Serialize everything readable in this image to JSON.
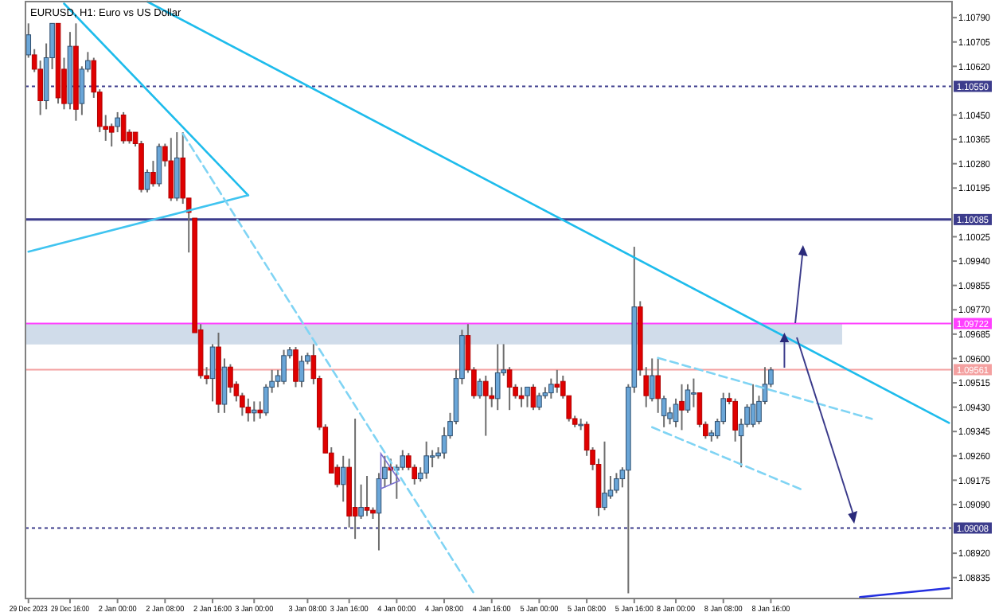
{
  "chart_data": {
    "type": "candlestick",
    "title": "EURUSD, H1: Euro vs US Dollar",
    "categories": [
      "29 Dec 2023",
      null,
      null,
      null,
      null,
      null,
      null,
      "29 Dec 16:00",
      null,
      null,
      null,
      null,
      null,
      null,
      null,
      "2 Jan 00:00",
      null,
      null,
      null,
      null,
      null,
      null,
      null,
      "2 Jan 08:00",
      null,
      null,
      null,
      null,
      null,
      null,
      null,
      "2 Jan 16:00",
      null,
      null,
      null,
      null,
      null,
      null,
      "3 Jan 00:00",
      null,
      null,
      null,
      null,
      null,
      null,
      null,
      null,
      "3 Jan 08:00",
      null,
      null,
      null,
      null,
      null,
      null,
      "3 Jan 16:00",
      null,
      null,
      null,
      null,
      null,
      null,
      null,
      "4 Jan 00:00",
      null,
      null,
      null,
      null,
      null,
      null,
      null,
      "4 Jan 08:00",
      null,
      null,
      null,
      null,
      null,
      null,
      null,
      "4 Jan 16:00",
      null,
      null,
      null,
      null,
      null,
      null,
      null,
      "5 Jan 00:00",
      null,
      null,
      null,
      null,
      null,
      null,
      null,
      "5 Jan 08:00",
      null,
      null,
      null,
      null,
      null,
      null,
      null,
      "5 Jan 16:00",
      null,
      null,
      null,
      null,
      null,
      null,
      "8 Jan 00:00",
      null,
      null,
      null,
      null,
      null,
      null,
      null,
      "8 Jan 08:00",
      null,
      null,
      null,
      null,
      null,
      null,
      null,
      "8 Jan 16:00",
      null,
      null,
      null,
      null,
      null,
      null,
      null,
      null,
      null,
      null,
      null,
      null,
      null,
      null,
      null,
      null,
      null,
      null,
      null,
      null,
      null,
      null,
      null,
      null,
      null,
      null,
      null,
      null,
      null,
      null
    ],
    "ohlc": [
      [
        1.1066,
        1.1077,
        1.1065,
        1.1073
      ],
      [
        1.1066,
        1.1068,
        1.106,
        1.1061
      ],
      [
        1.1061,
        1.1064,
        1.1045,
        1.105
      ],
      [
        1.105,
        1.107,
        1.1047,
        1.1065
      ],
      [
        1.1065,
        1.1077,
        1.1061,
        1.1077
      ],
      [
        1.1077,
        1.1077,
        1.1049,
        1.1051
      ],
      [
        1.1061,
        1.1065,
        1.1047,
        1.1049
      ],
      [
        1.1049,
        1.1074,
        1.1047,
        1.1069
      ],
      [
        1.1069,
        1.1077,
        1.1043,
        1.1047
      ],
      [
        1.1049,
        1.1062,
        1.1045,
        1.1061
      ],
      [
        1.1061,
        1.1067,
        1.106,
        1.1064
      ],
      [
        1.1064,
        1.1065,
        1.1051,
        1.1053
      ],
      [
        1.1053,
        1.1054,
        1.1039,
        1.1041
      ],
      [
        1.1041,
        1.1045,
        1.1036,
        1.104
      ],
      [
        1.1041,
        1.1042,
        1.1034,
        1.1039
      ],
      [
        1.1041,
        1.1046,
        1.1039,
        1.1044
      ],
      [
        1.1045,
        1.1046,
        1.1035,
        1.1036
      ],
      [
        1.1039,
        1.104,
        1.1035,
        1.1036
      ],
      [
        1.1039,
        1.1039,
        1.1034,
        1.1035
      ],
      [
        1.1035,
        1.1036,
        1.1018,
        1.1019
      ],
      [
        1.1019,
        1.1026,
        1.1018,
        1.1025
      ],
      [
        1.1025,
        1.1029,
        1.102,
        1.1021
      ],
      [
        1.1021,
        1.1035,
        1.102,
        1.1034
      ],
      [
        1.1034,
        1.1035,
        1.1027,
        1.1029
      ],
      [
        1.1029,
        1.1037,
        1.1015,
        1.1016
      ],
      [
        1.1016,
        1.1039,
        1.1015,
        1.103
      ],
      [
        1.103,
        1.1039,
        1.1014,
        1.1016
      ],
      [
        1.1016,
        1.1016,
        1.0997,
        1.1011
      ],
      [
        1.1009,
        1.1009,
        1.0969,
        1.0969
      ],
      [
        1.097,
        1.0972,
        1.0953,
        1.0954
      ],
      [
        1.0954,
        1.0957,
        1.0951,
        1.0953
      ],
      [
        1.0953,
        1.0965,
        1.0945,
        1.0964
      ],
      [
        1.0964,
        1.0969,
        1.0941,
        1.0944
      ],
      [
        1.0944,
        1.096,
        1.0941,
        1.0957
      ],
      [
        1.0957,
        1.0958,
        1.0948,
        1.095
      ],
      [
        1.0951,
        1.0952,
        1.0945,
        1.0947
      ],
      [
        1.0947,
        1.0948,
        1.094,
        1.0943
      ],
      [
        1.0943,
        1.0946,
        1.0938,
        1.0941
      ],
      [
        1.0941,
        1.0945,
        1.0938,
        1.0942
      ],
      [
        1.0942,
        1.0945,
        1.0939,
        1.0941
      ],
      [
        1.0941,
        1.0951,
        1.094,
        1.095
      ],
      [
        1.095,
        1.0956,
        1.0948,
        1.0952
      ],
      [
        1.0952,
        1.0956,
        1.095,
        1.0954
      ],
      [
        1.0952,
        1.0963,
        1.0951,
        1.0961
      ],
      [
        1.0961,
        1.0964,
        1.096,
        1.0963
      ],
      [
        1.0963,
        1.0964,
        1.095,
        1.0952
      ],
      [
        1.0952,
        1.0961,
        1.095,
        1.0959
      ],
      [
        1.0959,
        1.0962,
        1.0958,
        1.0961
      ],
      [
        1.0961,
        1.0965,
        1.0951,
        1.0953
      ],
      [
        1.0953,
        1.0954,
        1.0935,
        1.0936
      ],
      [
        1.0936,
        1.0937,
        1.0927,
        1.0927
      ],
      [
        1.0927,
        1.0929,
        1.092,
        1.092
      ],
      [
        1.0922,
        1.0923,
        1.0915,
        1.0916
      ],
      [
        1.0916,
        1.0926,
        1.091,
        1.0922
      ],
      [
        1.0922,
        1.0925,
        1.0901,
        1.0905
      ],
      [
        1.0908,
        1.0939,
        1.0897,
        1.0905
      ],
      [
        1.0905,
        1.0916,
        1.0904,
        1.0908
      ],
      [
        1.0908,
        1.0919,
        1.0905,
        1.0907
      ],
      [
        1.0907,
        1.0908,
        1.0904,
        1.0906
      ],
      [
        1.0906,
        1.092,
        1.0893,
        1.0918
      ],
      [
        1.0918,
        1.0926,
        1.0915,
        1.0922
      ],
      [
        1.0922,
        1.0925,
        1.0916,
        1.0921
      ],
      [
        1.0921,
        1.0923,
        1.0911,
        1.0922
      ],
      [
        1.0922,
        1.0928,
        1.0921,
        1.0926
      ],
      [
        1.0926,
        1.0927,
        1.0921,
        1.0922
      ],
      [
        1.0922,
        1.0923,
        1.0916,
        1.0918
      ],
      [
        1.0918,
        1.0922,
        1.0917,
        1.092
      ],
      [
        1.092,
        1.0931,
        1.0918,
        1.0926
      ],
      [
        1.0926,
        1.0928,
        1.0922,
        1.0926
      ],
      [
        1.0926,
        1.0929,
        1.0925,
        1.0927
      ],
      [
        1.0927,
        1.0936,
        1.0925,
        1.0933
      ],
      [
        1.0933,
        1.0941,
        1.0932,
        1.0938
      ],
      [
        1.0938,
        1.0956,
        1.0937,
        1.0953
      ],
      [
        1.0953,
        1.097,
        1.0951,
        1.0968
      ],
      [
        1.0968,
        1.0972,
        1.0955,
        1.0956
      ],
      [
        1.0956,
        1.0957,
        1.0946,
        1.0947
      ],
      [
        1.0947,
        1.0953,
        1.0946,
        1.0952
      ],
      [
        1.0952,
        1.0954,
        1.0933,
        1.0947
      ],
      [
        1.0947,
        1.095,
        1.0943,
        1.0946
      ],
      [
        1.0946,
        1.0965,
        1.0942,
        1.0955
      ],
      [
        1.0955,
        1.0965,
        1.0954,
        1.0956
      ],
      [
        1.0956,
        1.0957,
        1.0942,
        1.095
      ],
      [
        1.095,
        1.0951,
        1.0946,
        1.0947
      ],
      [
        1.0947,
        1.095,
        1.0943,
        1.0946
      ],
      [
        1.0947,
        1.095,
        1.0943,
        1.095
      ],
      [
        1.095,
        1.0951,
        1.0942,
        1.0943
      ],
      [
        1.0943,
        1.0948,
        1.0942,
        1.0947
      ],
      [
        1.0947,
        1.095,
        1.0946,
        1.0948
      ],
      [
        1.0948,
        1.0953,
        1.0946,
        1.0951
      ],
      [
        1.0951,
        1.0956,
        1.0948,
        1.095
      ],
      [
        1.0952,
        1.0954,
        1.0946,
        1.0947
      ],
      [
        1.0947,
        1.0947,
        1.0938,
        1.0939
      ],
      [
        1.0939,
        1.094,
        1.0936,
        1.0937
      ],
      [
        1.0937,
        1.0939,
        1.0935,
        1.0937
      ],
      [
        1.0937,
        1.0938,
        1.0926,
        1.0928
      ],
      [
        1.0928,
        1.0929,
        1.0921,
        1.0923
      ],
      [
        1.0923,
        1.0925,
        1.0905,
        1.0908
      ],
      [
        1.0908,
        1.0931,
        1.0907,
        1.0913
      ],
      [
        1.0912,
        1.0919,
        1.0911,
        1.0914
      ],
      [
        1.0914,
        1.092,
        1.0913,
        1.0918
      ],
      [
        1.0918,
        1.0922,
        1.0915,
        1.0921
      ],
      [
        1.0921,
        1.0951,
        1.0878,
        1.095
      ],
      [
        1.095,
        1.0999,
        1.0948,
        1.0978
      ],
      [
        1.0978,
        1.098,
        1.0954,
        1.0956
      ],
      [
        1.0954,
        1.0957,
        1.0943,
        1.0947
      ],
      [
        1.0946,
        1.096,
        1.0945,
        1.0954
      ],
      [
        1.0954,
        1.096,
        1.0941,
        1.0946
      ],
      [
        1.094,
        1.0947,
        1.0936,
        1.0946
      ],
      [
        1.0939,
        1.0943,
        1.0937,
        1.0941
      ],
      [
        1.0938,
        1.0946,
        1.0936,
        1.0944
      ],
      [
        1.0945,
        1.0951,
        1.0935,
        1.0942
      ],
      [
        1.0942,
        1.0951,
        1.0941,
        1.0949
      ],
      [
        1.0948,
        1.0953,
        1.0943,
        1.0948
      ],
      [
        1.0948,
        1.0948,
        1.0936,
        1.0937
      ],
      [
        1.0937,
        1.0938,
        1.0932,
        1.0933
      ],
      [
        1.0933,
        1.0935,
        1.0931,
        1.0934
      ],
      [
        1.0933,
        1.0939,
        1.0932,
        1.0938
      ],
      [
        1.0938,
        1.0948,
        1.0937,
        1.0946
      ],
      [
        1.0946,
        1.0948,
        1.0944,
        1.0945
      ],
      [
        1.0945,
        1.0946,
        1.0931,
        1.0935
      ],
      [
        1.0933,
        1.0939,
        1.0922,
        1.0937
      ],
      [
        1.0937,
        1.0944,
        1.0936,
        1.0943
      ],
      [
        1.0937,
        1.0951,
        1.0936,
        1.0944
      ],
      [
        1.0938,
        1.0947,
        1.0937,
        1.0945
      ],
      [
        1.0945,
        1.0957,
        1.0944,
        1.0951
      ],
      [
        1.0951,
        1.0957,
        1.095,
        1.0956
      ],
      null,
      null,
      null,
      null,
      null,
      null,
      null,
      null,
      null,
      null,
      null,
      null,
      null,
      null,
      null,
      null,
      null,
      null,
      null,
      null,
      null,
      null,
      null,
      null,
      null,
      null,
      null,
      null,
      null,
      null
    ],
    "series": [
      {
        "type": "line",
        "color": "#1ebcec",
        "line_style": "solid",
        "values": [
          null,
          null,
          null,
          null,
          null,
          null,
          null,
          null,
          null,
          null,
          null,
          null,
          null,
          null,
          null,
          null,
          null,
          null,
          null,
          null,
          1.10846,
          null,
          null,
          null,
          null,
          null,
          null,
          null,
          null,
          null,
          null,
          null,
          null,
          null,
          null,
          null,
          null,
          null,
          null,
          null,
          null,
          null,
          null,
          null,
          null,
          null,
          null,
          null,
          null,
          null,
          null,
          null,
          null,
          null,
          null,
          null,
          null,
          null,
          null,
          null,
          null,
          null,
          null,
          null,
          null,
          null,
          null,
          null,
          null,
          null,
          null,
          null,
          null,
          null,
          null,
          null,
          null,
          null,
          null,
          null,
          null,
          null,
          null,
          null,
          null,
          null,
          null,
          null,
          null,
          null,
          null,
          null,
          null,
          null,
          null,
          null,
          null,
          null,
          null,
          null,
          null,
          null,
          null,
          null,
          null,
          null,
          null,
          null,
          null,
          null,
          null,
          null,
          null,
          null,
          null,
          null,
          null,
          null,
          null,
          null,
          null,
          null,
          null,
          null,
          null,
          null,
          null,
          null,
          null,
          null,
          null,
          null,
          null,
          null,
          null,
          null,
          null,
          null,
          null,
          null,
          null,
          null,
          null,
          null,
          null,
          null,
          null,
          null,
          null,
          null,
          null,
          null,
          null,
          null,
          null,
          1.09375
        ]
      },
      {
        "type": "line",
        "color": "#1ebcec",
        "line_style": "solid",
        "values": [
          null,
          null,
          null,
          null,
          null,
          null,
          1.10839,
          null,
          null,
          null,
          null,
          null,
          null,
          null,
          null,
          null,
          null,
          null,
          null,
          null,
          null,
          null,
          null,
          null,
          null,
          null,
          null,
          null,
          null,
          null,
          null,
          null,
          null,
          null,
          null,
          null,
          null,
          1.1017,
          null,
          null,
          null,
          null,
          null,
          null,
          null,
          null,
          null,
          null,
          null,
          null,
          null,
          null,
          null,
          null,
          null,
          null,
          null,
          null,
          null,
          null,
          null,
          null,
          null,
          null,
          null,
          null,
          null,
          null,
          null,
          null,
          null,
          null,
          null,
          null,
          null,
          null,
          null,
          null,
          null,
          null,
          null,
          null,
          null,
          null,
          null,
          null,
          null,
          null,
          null,
          null,
          null,
          null,
          null,
          null,
          null,
          null,
          null,
          null,
          null,
          null,
          null,
          null,
          null,
          null,
          null,
          null,
          null,
          null,
          null,
          null,
          null,
          null,
          null,
          null,
          null,
          null,
          null,
          null,
          null,
          null,
          null,
          null,
          null,
          null,
          null,
          null,
          null,
          null,
          null,
          null,
          null,
          null,
          null,
          null,
          null,
          null,
          null,
          null,
          null,
          null,
          null,
          null,
          null,
          null,
          null,
          null,
          null,
          null,
          null,
          null,
          null,
          null,
          null,
          null,
          null,
          null
        ]
      },
      {
        "type": "line",
        "color": "#40c4f0",
        "line_style": "solid",
        "values": [
          1.09973,
          null,
          null,
          null,
          null,
          null,
          null,
          null,
          null,
          null,
          null,
          null,
          null,
          null,
          null,
          null,
          null,
          null,
          null,
          null,
          null,
          null,
          null,
          null,
          null,
          null,
          null,
          null,
          null,
          null,
          null,
          null,
          null,
          null,
          null,
          null,
          null,
          1.1017,
          null,
          null,
          null,
          null,
          null,
          null,
          null,
          null,
          null,
          null,
          null,
          null,
          null,
          null,
          null,
          null,
          null,
          null,
          null,
          null,
          null,
          null,
          null,
          null,
          null,
          null,
          null,
          null,
          null,
          null,
          null,
          null,
          null,
          null,
          null,
          null,
          null,
          null,
          null,
          null,
          null,
          null,
          null,
          null,
          null,
          null,
          null,
          null,
          null,
          null,
          null,
          null,
          null,
          null,
          null,
          null,
          null,
          null,
          null,
          null,
          null,
          null,
          null,
          null,
          null,
          null,
          null,
          null,
          null,
          null,
          null,
          null,
          null,
          null,
          null,
          null,
          null,
          null,
          null,
          null,
          null,
          null,
          null,
          null,
          null,
          null,
          null,
          null,
          null,
          null,
          null,
          null,
          null,
          null,
          null,
          null,
          null,
          null,
          null,
          null,
          null,
          null,
          null,
          null,
          null,
          null,
          null,
          null,
          null,
          null,
          null,
          null,
          null,
          null,
          null,
          null,
          null,
          null
        ]
      },
      {
        "type": "line",
        "color": "#80d4f4",
        "line_style": "dashed",
        "values": [
          null,
          null,
          null,
          null,
          null,
          null,
          null,
          null,
          null,
          null,
          null,
          null,
          null,
          null,
          null,
          null,
          null,
          null,
          null,
          null,
          null,
          null,
          null,
          null,
          null,
          null,
          1.10385,
          null,
          null,
          null,
          null,
          null,
          null,
          null,
          null,
          null,
          null,
          null,
          null,
          null,
          null,
          null,
          null,
          null,
          null,
          null,
          null,
          null,
          null,
          null,
          null,
          null,
          null,
          null,
          null,
          null,
          null,
          null,
          null,
          null,
          null,
          null,
          null,
          null,
          null,
          null,
          null,
          null,
          null,
          null,
          null,
          null,
          null,
          null,
          null,
          1.0878,
          null,
          null,
          null,
          null,
          null,
          null,
          null,
          null,
          null,
          null,
          null,
          null,
          null,
          null,
          null,
          null,
          null,
          null,
          null,
          null,
          null,
          null,
          null,
          null,
          null,
          null,
          null,
          null,
          null,
          null,
          null,
          null,
          null,
          null,
          null,
          null,
          null,
          null,
          null,
          null,
          null,
          null,
          null,
          null,
          null,
          null,
          null,
          null,
          null,
          null,
          null,
          null,
          null,
          null,
          null,
          null,
          null,
          null,
          null,
          null,
          null,
          null,
          null,
          null,
          null,
          null,
          null,
          null,
          null,
          null,
          null,
          null,
          null,
          null,
          null,
          null,
          null,
          null,
          null,
          null
        ]
      },
      {
        "type": "line",
        "color": "#80d4f4",
        "line_style": "dashed",
        "values": [
          null,
          null,
          null,
          null,
          null,
          null,
          null,
          null,
          null,
          null,
          null,
          null,
          null,
          null,
          null,
          null,
          null,
          null,
          null,
          null,
          null,
          null,
          null,
          null,
          null,
          null,
          null,
          null,
          null,
          null,
          null,
          null,
          null,
          null,
          null,
          null,
          null,
          null,
          null,
          null,
          null,
          null,
          null,
          null,
          null,
          null,
          null,
          null,
          null,
          null,
          null,
          null,
          null,
          null,
          null,
          null,
          null,
          null,
          null,
          null,
          null,
          null,
          null,
          null,
          null,
          null,
          null,
          null,
          null,
          null,
          null,
          null,
          null,
          null,
          null,
          null,
          null,
          null,
          null,
          null,
          null,
          null,
          null,
          null,
          null,
          null,
          null,
          null,
          null,
          null,
          null,
          null,
          null,
          null,
          null,
          null,
          null,
          null,
          null,
          null,
          null,
          null,
          null,
          null,
          null,
          null,
          1.09602,
          null,
          null,
          null,
          null,
          null,
          null,
          null,
          null,
          null,
          null,
          null,
          null,
          null,
          null,
          null,
          null,
          null,
          null,
          null,
          null,
          null,
          null,
          null,
          null,
          null,
          null,
          null,
          null,
          null,
          null,
          null,
          null,
          null,
          null,
          null,
          1.09389,
          null,
          null,
          null,
          null,
          null,
          null,
          null,
          null,
          null,
          null,
          null,
          null,
          null
        ]
      },
      {
        "type": "line",
        "color": "#80d4f4",
        "line_style": "dashed",
        "values": [
          null,
          null,
          null,
          null,
          null,
          null,
          null,
          null,
          null,
          null,
          null,
          null,
          null,
          null,
          null,
          null,
          null,
          null,
          null,
          null,
          null,
          null,
          null,
          null,
          null,
          null,
          null,
          null,
          null,
          null,
          null,
          null,
          null,
          null,
          null,
          null,
          null,
          null,
          null,
          null,
          null,
          null,
          null,
          null,
          null,
          null,
          null,
          null,
          null,
          null,
          null,
          null,
          null,
          null,
          null,
          null,
          null,
          null,
          null,
          null,
          null,
          null,
          null,
          null,
          null,
          null,
          null,
          null,
          null,
          null,
          null,
          null,
          null,
          null,
          null,
          null,
          null,
          null,
          null,
          null,
          null,
          null,
          null,
          null,
          null,
          null,
          null,
          null,
          null,
          null,
          null,
          null,
          null,
          null,
          null,
          null,
          null,
          null,
          null,
          null,
          null,
          null,
          null,
          null,
          null,
          1.0936,
          null,
          null,
          null,
          null,
          null,
          null,
          null,
          null,
          null,
          null,
          null,
          null,
          null,
          null,
          null,
          null,
          null,
          null,
          null,
          null,
          null,
          null,
          null,
          null,
          1.09144,
          null,
          null,
          null,
          null,
          null,
          null,
          null,
          null,
          null,
          null,
          null,
          null,
          null,
          null,
          null,
          null,
          null,
          null,
          null,
          null,
          null,
          null,
          null,
          null,
          null
        ]
      },
      {
        "type": "line",
        "color": "#2430e0",
        "line_style": "solid",
        "values": [
          null,
          null,
          null,
          null,
          null,
          null,
          null,
          null,
          null,
          null,
          null,
          null,
          null,
          null,
          null,
          null,
          null,
          null,
          null,
          null,
          null,
          null,
          null,
          null,
          null,
          null,
          null,
          null,
          null,
          null,
          null,
          null,
          null,
          null,
          null,
          null,
          null,
          null,
          null,
          null,
          null,
          null,
          null,
          null,
          null,
          null,
          null,
          null,
          null,
          null,
          null,
          null,
          null,
          null,
          null,
          null,
          null,
          null,
          null,
          null,
          null,
          null,
          null,
          null,
          null,
          null,
          null,
          null,
          null,
          null,
          null,
          null,
          null,
          null,
          null,
          null,
          null,
          null,
          null,
          null,
          null,
          null,
          null,
          null,
          null,
          null,
          null,
          null,
          null,
          null,
          null,
          null,
          null,
          null,
          null,
          null,
          null,
          null,
          null,
          null,
          null,
          null,
          null,
          null,
          null,
          null,
          null,
          null,
          null,
          null,
          null,
          null,
          null,
          null,
          null,
          null,
          null,
          null,
          null,
          null,
          null,
          null,
          null,
          null,
          null,
          null,
          null,
          null,
          null,
          null,
          null,
          null,
          null,
          null,
          null,
          null,
          null,
          null,
          null,
          null,
          1.08767,
          null,
          null,
          null,
          null,
          null,
          null,
          null,
          null,
          null,
          null,
          null,
          null,
          null,
          null,
          1.08798
        ]
      }
    ],
    "ref_lines": [
      {
        "axis": "y",
        "value": 1.1055,
        "label": "1.10550",
        "color": "#3c3c8c",
        "line_style": "dotted"
      },
      {
        "axis": "y",
        "value": 1.10085,
        "label": "1.10085",
        "color": "#3c3c8c",
        "line_style": "solid"
      },
      {
        "axis": "y",
        "value": 1.09722,
        "label": "1.09722",
        "color": "#ff40ff",
        "line_style": "solid"
      },
      {
        "axis": "y",
        "value": 1.09561,
        "label": "1.09561",
        "color": "#f4a0a0",
        "line_style": "solid"
      },
      {
        "axis": "y",
        "value": 1.09008,
        "label": "1.09008",
        "color": "#3c3c8c",
        "line_style": "dotted"
      }
    ],
    "bands": [
      {
        "axis": "y",
        "from": 1.09649,
        "to": 1.09722,
        "color": "#d0dcea"
      }
    ],
    "ylim": [
      1.08762,
      1.10846
    ],
    "yticks": [
      {
        "value": 1.1079,
        "label": "1.10790"
      },
      {
        "value": 1.10705,
        "label": "1.10705"
      },
      {
        "value": 1.1062,
        "label": "1.10620"
      },
      {
        "value": 1.1045,
        "label": "1.10450"
      },
      {
        "value": 1.10365,
        "label": "1.10365"
      },
      {
        "value": 1.1028,
        "label": "1.10280"
      },
      {
        "value": 1.10195,
        "label": "1.10195"
      },
      {
        "value": 1.10025,
        "label": "1.10025"
      },
      {
        "value": 1.0994,
        "label": "1.09940"
      },
      {
        "value": 1.09855,
        "label": "1.09855"
      },
      {
        "value": 1.0977,
        "label": "1.09770"
      },
      {
        "value": 1.09685,
        "label": "1.09685"
      },
      {
        "value": 1.096,
        "label": "1.09600"
      },
      {
        "value": 1.09515,
        "label": "1.09515"
      },
      {
        "value": 1.0943,
        "label": "1.09430"
      },
      {
        "value": 1.09345,
        "label": "1.09345"
      },
      {
        "value": 1.0926,
        "label": "1.09260"
      },
      {
        "value": 1.09175,
        "label": "1.09175"
      },
      {
        "value": 1.0909,
        "label": "1.09090"
      },
      {
        "value": 1.0892,
        "label": "1.08920"
      },
      {
        "value": 1.08835,
        "label": "1.08835"
      }
    ],
    "grid": false
  }
}
